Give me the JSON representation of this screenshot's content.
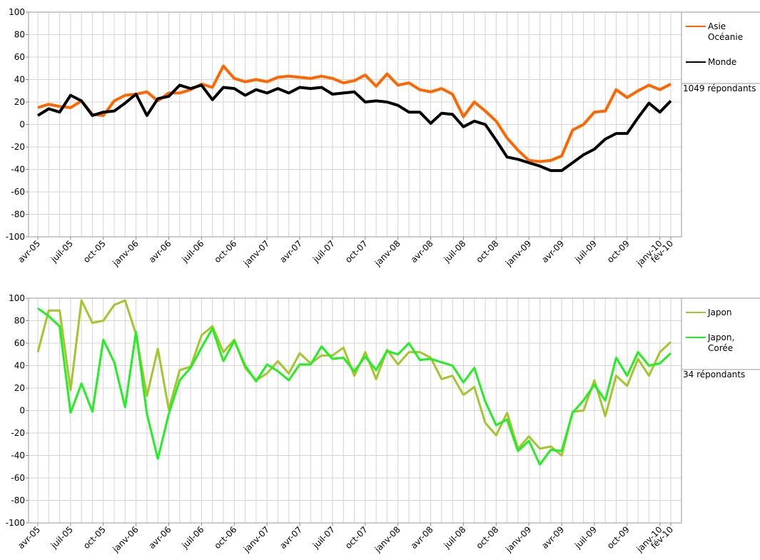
{
  "chart_data": [
    {
      "type": "line",
      "categories": [
        "avr-05",
        null,
        null,
        "juil-05",
        null,
        null,
        "oct-05",
        null,
        null,
        "janv-06",
        null,
        null,
        "avr-06",
        null,
        null,
        "juil-06",
        null,
        null,
        "oct-06",
        null,
        null,
        "janv-07",
        null,
        null,
        "avr-07",
        null,
        null,
        "juil-07",
        null,
        null,
        "oct-07",
        null,
        null,
        "janv-08",
        null,
        null,
        "avr-08",
        null,
        null,
        "juil-08",
        null,
        null,
        "oct-08",
        null,
        null,
        "janv-09",
        null,
        null,
        "avr-09",
        null,
        null,
        "juil-09",
        null,
        null,
        "oct-09",
        null,
        null,
        "janv-10",
        "fév-10"
      ],
      "series": [
        {
          "name": "Asie Océanie",
          "color": "#ff6600",
          "values": [
            15,
            18,
            16,
            15,
            21,
            9,
            8,
            21,
            26,
            27,
            29,
            21,
            28,
            28,
            31,
            36,
            33,
            52,
            41,
            38,
            40,
            38,
            42,
            43,
            42,
            41,
            43,
            41,
            37,
            39,
            44,
            34,
            45,
            35,
            37,
            31,
            29,
            32,
            27,
            7,
            20,
            12,
            3,
            -12,
            -23,
            -32,
            -33,
            -32,
            -28,
            -5,
            0,
            11,
            12,
            31,
            24,
            30,
            35,
            31,
            36
          ]
        },
        {
          "name": "Monde",
          "color": "#000000",
          "values": [
            8,
            14,
            11,
            26,
            21,
            8,
            11,
            12,
            19,
            27,
            8,
            23,
            25,
            35,
            32,
            35,
            22,
            33,
            32,
            26,
            31,
            28,
            32,
            28,
            33,
            32,
            33,
            27,
            28,
            29,
            20,
            21,
            20,
            17,
            11,
            11,
            1,
            10,
            9,
            -2,
            3,
            0,
            -14,
            -29,
            -31,
            -34,
            -37,
            -41,
            -41,
            -34,
            -27,
            -22,
            -13,
            -8,
            -8,
            6,
            19,
            11,
            21
          ]
        }
      ],
      "ylim": [
        -100,
        100
      ],
      "yticks": [
        -100,
        -80,
        -60,
        -40,
        -20,
        0,
        20,
        40,
        60,
        80,
        100
      ],
      "grid": true,
      "annotation": "1049 répondants",
      "line_width": 4
    },
    {
      "type": "line",
      "categories": [
        "avr-05",
        null,
        null,
        "juil-05",
        null,
        null,
        "oct-05",
        null,
        null,
        "janv-06",
        null,
        null,
        "avr-06",
        null,
        null,
        "juil-06",
        null,
        null,
        "oct-06",
        null,
        null,
        "janv-07",
        null,
        null,
        "avr-07",
        null,
        null,
        "juil-07",
        null,
        null,
        "oct-07",
        null,
        null,
        "janv-08",
        null,
        null,
        "avr-08",
        null,
        null,
        "juil-08",
        null,
        null,
        "oct-08",
        null,
        null,
        "janv-09",
        null,
        null,
        "avr-09",
        null,
        null,
        "juil-09",
        null,
        null,
        "oct-09",
        null,
        null,
        "janv-10",
        "fév-10"
      ],
      "series": [
        {
          "name": "Japon",
          "color": "#a3c62c",
          "values": [
            52,
            89,
            89,
            18,
            98,
            78,
            80,
            94,
            98,
            68,
            13,
            55,
            1,
            36,
            39,
            67,
            75,
            52,
            63,
            38,
            27,
            33,
            44,
            33,
            51,
            42,
            49,
            49,
            56,
            31,
            52,
            28,
            54,
            41,
            52,
            52,
            47,
            28,
            31,
            14,
            21,
            -11,
            -22,
            -2,
            -34,
            -23,
            -34,
            -32,
            -40,
            -1,
            0,
            27,
            -5,
            31,
            22,
            46,
            31,
            52,
            61
          ]
        },
        {
          "name": "Japon, Corée",
          "color": "#22ee22",
          "values": [
            91,
            84,
            75,
            -2,
            24,
            -1,
            63,
            43,
            3,
            70,
            -3,
            -43,
            -3,
            27,
            38,
            56,
            73,
            44,
            62,
            40,
            26,
            41,
            35,
            27,
            41,
            41,
            57,
            46,
            47,
            35,
            48,
            36,
            53,
            50,
            60,
            45,
            46,
            43,
            40,
            25,
            38,
            8,
            -13,
            -8,
            -36,
            -27,
            -48,
            -35,
            -36,
            -2,
            9,
            23,
            9,
            47,
            31,
            52,
            40,
            42,
            51
          ]
        }
      ],
      "ylim": [
        -100,
        100
      ],
      "yticks": [
        -100,
        -80,
        -60,
        -40,
        -20,
        0,
        20,
        40,
        60,
        80,
        100
      ],
      "grid": true,
      "annotation": "34 répondants",
      "line_width": 3
    }
  ]
}
